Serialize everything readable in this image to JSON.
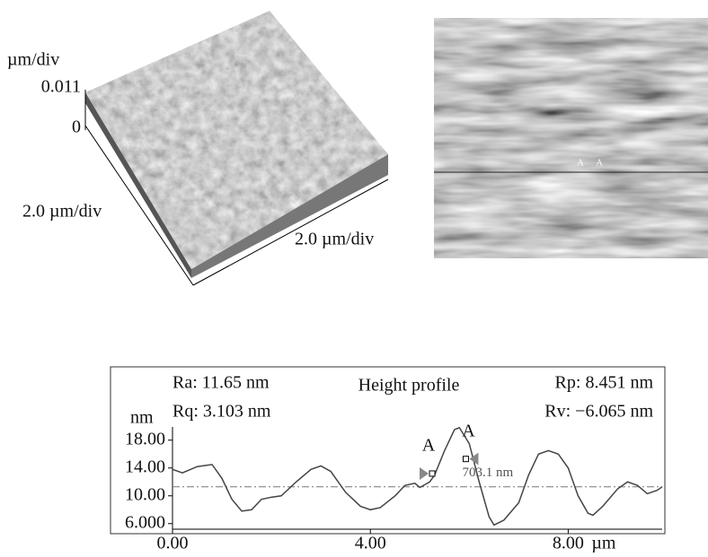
{
  "surface_plot": {
    "z_unit": "µm/div",
    "z_max": "0.011",
    "z_zero": "0",
    "x_scale": "2.0 µm/div",
    "y_scale": "2.0 µm/div"
  },
  "image_cursors": [
    "A",
    "A"
  ],
  "chart_data": {
    "type": "line",
    "title": "Height profile",
    "stats": [
      "Ra: 11.65 nm",
      "Rq: 3.103 nm",
      "Rp: 8.451 nm",
      "Rv: −6.065 nm"
    ],
    "ylabel": "nm",
    "xlabel": "µm",
    "x": [
      0,
      0.2,
      0.5,
      0.8,
      1.0,
      1.2,
      1.4,
      1.6,
      1.8,
      2.0,
      2.2,
      2.5,
      2.8,
      3.0,
      3.2,
      3.5,
      3.8,
      4.0,
      4.2,
      4.5,
      4.7,
      4.9,
      5.0,
      5.2,
      5.3,
      5.5,
      5.7,
      5.8,
      6.0,
      6.2,
      6.4,
      6.5,
      6.7,
      7.0,
      7.2,
      7.4,
      7.6,
      7.8,
      8.0,
      8.2,
      8.4,
      8.5,
      8.7,
      9.0,
      9.2,
      9.4,
      9.6,
      9.8,
      9.9
    ],
    "series": [
      {
        "color": "#444444",
        "values": [
          13.8,
          13.3,
          14.2,
          14.5,
          12.5,
          9.5,
          7.8,
          8.0,
          9.5,
          9.8,
          10.0,
          12.0,
          13.8,
          14.3,
          13.5,
          10.5,
          8.5,
          8.0,
          8.3,
          10.0,
          11.5,
          11.8,
          11.2,
          12.0,
          13.0,
          16.5,
          19.5,
          19.8,
          17.5,
          12.0,
          7.0,
          5.8,
          6.5,
          9.0,
          13.0,
          16.0,
          16.5,
          16.0,
          14.0,
          10.0,
          7.5,
          7.2,
          8.5,
          11.0,
          12.0,
          11.5,
          10.3,
          10.8,
          11.3
        ]
      }
    ],
    "reference_line": 11.3,
    "cursors": [
      {
        "label": "A",
        "x": 5.25,
        "y": 13.2
      },
      {
        "label": "A",
        "x": 5.93,
        "y": 15.3
      }
    ],
    "cursor_distance": "703.1 nm",
    "xlim": [
      0,
      9.9
    ],
    "ylim": [
      5.2,
      19.9
    ],
    "xticks": [
      {
        "value": 0,
        "label": "0.00"
      },
      {
        "value": 4,
        "label": "4.00"
      },
      {
        "value": 8,
        "label": "8.00"
      }
    ],
    "yticks": [
      {
        "value": 6,
        "label": "6.000"
      },
      {
        "value": 10,
        "label": "10.00"
      },
      {
        "value": 14,
        "label": "14.00"
      },
      {
        "value": 18,
        "label": "18.00"
      }
    ]
  }
}
